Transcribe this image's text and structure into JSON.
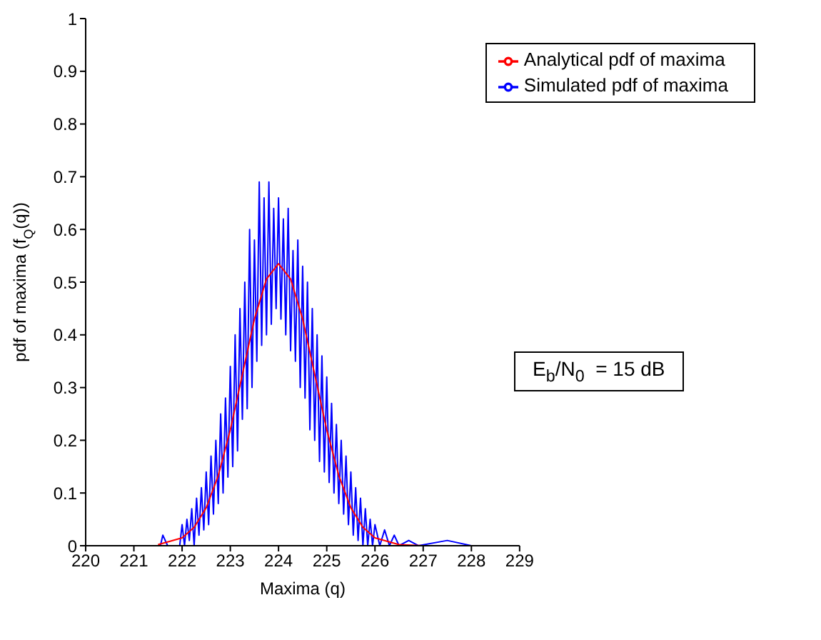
{
  "chart_data": {
    "type": "line",
    "xlabel": "Maxima (q)",
    "ylabel": "pdf of maxima (f$_{Q}$(q))",
    "annotations": [
      "E$_{b}$/N$_{0}$  = 15 dB"
    ],
    "xlim": [
      220,
      229
    ],
    "xticks": [
      220,
      221,
      222,
      223,
      224,
      225,
      226,
      227,
      228,
      229
    ],
    "ylim": [
      0,
      1
    ],
    "yticks": [
      0,
      0.1,
      0.2,
      0.3,
      0.4,
      0.5,
      0.6,
      0.7,
      0.8,
      0.9,
      1
    ],
    "grid": false,
    "legend": "top right",
    "marker": "none",
    "line_style": "solid",
    "series": [
      {
        "name": "Simulated pdf of maxima",
        "color": "#0000ff",
        "x": [
          221.55,
          221.6,
          221.7,
          221.95,
          222,
          222.05,
          222.1,
          222.15,
          222.2,
          222.25,
          222.3,
          222.35,
          222.4,
          222.45,
          222.5,
          222.55,
          222.6,
          222.65,
          222.7,
          222.75,
          222.8,
          222.85,
          222.9,
          222.95,
          223,
          223.05,
          223.1,
          223.15,
          223.2,
          223.25,
          223.3,
          223.35,
          223.4,
          223.45,
          223.5,
          223.55,
          223.6,
          223.65,
          223.7,
          223.75,
          223.8,
          223.85,
          223.9,
          223.95,
          224,
          224.05,
          224.1,
          224.15,
          224.2,
          224.25,
          224.3,
          224.35,
          224.4,
          224.45,
          224.5,
          224.55,
          224.6,
          224.65,
          224.7,
          224.75,
          224.8,
          224.85,
          224.9,
          224.95,
          225,
          225.05,
          225.1,
          225.15,
          225.2,
          225.25,
          225.3,
          225.35,
          225.4,
          225.45,
          225.5,
          225.55,
          225.6,
          225.65,
          225.7,
          225.75,
          225.8,
          225.85,
          225.9,
          225.95,
          226,
          226.1,
          226.2,
          226.3,
          226.4,
          226.5,
          226.7,
          226.9,
          227.5,
          228
        ],
        "values": [
          0,
          0.02,
          0,
          0,
          0.04,
          0,
          0.05,
          0.01,
          0.07,
          0,
          0.09,
          0.02,
          0.11,
          0.03,
          0.14,
          0.04,
          0.17,
          0.06,
          0.2,
          0.08,
          0.25,
          0.1,
          0.28,
          0.13,
          0.34,
          0.15,
          0.4,
          0.18,
          0.45,
          0.24,
          0.5,
          0.26,
          0.6,
          0.3,
          0.58,
          0.35,
          0.69,
          0.38,
          0.66,
          0.4,
          0.69,
          0.42,
          0.64,
          0.45,
          0.66,
          0.43,
          0.62,
          0.4,
          0.64,
          0.37,
          0.56,
          0.35,
          0.58,
          0.3,
          0.53,
          0.28,
          0.5,
          0.22,
          0.45,
          0.2,
          0.4,
          0.16,
          0.36,
          0.14,
          0.32,
          0.12,
          0.27,
          0.1,
          0.23,
          0.08,
          0.2,
          0.06,
          0.17,
          0.04,
          0.14,
          0.02,
          0.11,
          0.01,
          0.09,
          0,
          0.07,
          0,
          0.05,
          0,
          0.04,
          0,
          0.03,
          0,
          0.02,
          0,
          0.01,
          0,
          0.01,
          0
        ]
      },
      {
        "name": "Analytical pdf of maxima",
        "color": "#ff0000",
        "x": [
          221.5,
          222,
          222.25,
          222.5,
          222.75,
          223,
          223.25,
          223.5,
          223.75,
          224,
          224.25,
          224.5,
          224.75,
          225,
          225.25,
          225.5,
          225.75,
          226,
          226.5,
          227
        ],
        "values": [
          0.002,
          0.015,
          0.035,
          0.072,
          0.133,
          0.22,
          0.325,
          0.43,
          0.506,
          0.535,
          0.506,
          0.43,
          0.325,
          0.22,
          0.133,
          0.072,
          0.035,
          0.015,
          0.002,
          0
        ]
      }
    ]
  }
}
